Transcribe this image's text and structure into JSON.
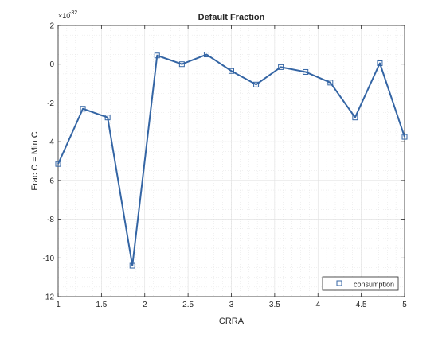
{
  "chart_data": {
    "type": "line",
    "title": "Default Fraction",
    "xlabel": "CRRA",
    "ylabel": "Frac C = Min C",
    "y_exponent_base": "×10",
    "y_exponent_power": "-32",
    "xlim": [
      1,
      5
    ],
    "ylim": [
      -12,
      2
    ],
    "xticks": [
      1,
      1.5,
      2,
      2.5,
      3,
      3.5,
      4,
      4.5,
      5
    ],
    "yticks": [
      -12,
      -10,
      -8,
      -6,
      -4,
      -2,
      0,
      2
    ],
    "grid": true,
    "minor_grid": true,
    "legend_location": "bottom-right",
    "series": [
      {
        "name": "consumption",
        "color": "#3465a4",
        "marker": "square",
        "x": [
          1.0,
          1.2857,
          1.5714,
          1.8571,
          2.1429,
          2.4286,
          2.7143,
          3.0,
          3.2857,
          3.5714,
          3.8571,
          4.1429,
          4.4286,
          4.7143,
          5.0
        ],
        "y": [
          -5.15,
          -2.3,
          -2.75,
          -10.4,
          0.45,
          0.0,
          0.5,
          -0.35,
          -1.05,
          -0.15,
          -0.4,
          -0.95,
          -2.75,
          0.05,
          -3.75
        ]
      }
    ]
  }
}
